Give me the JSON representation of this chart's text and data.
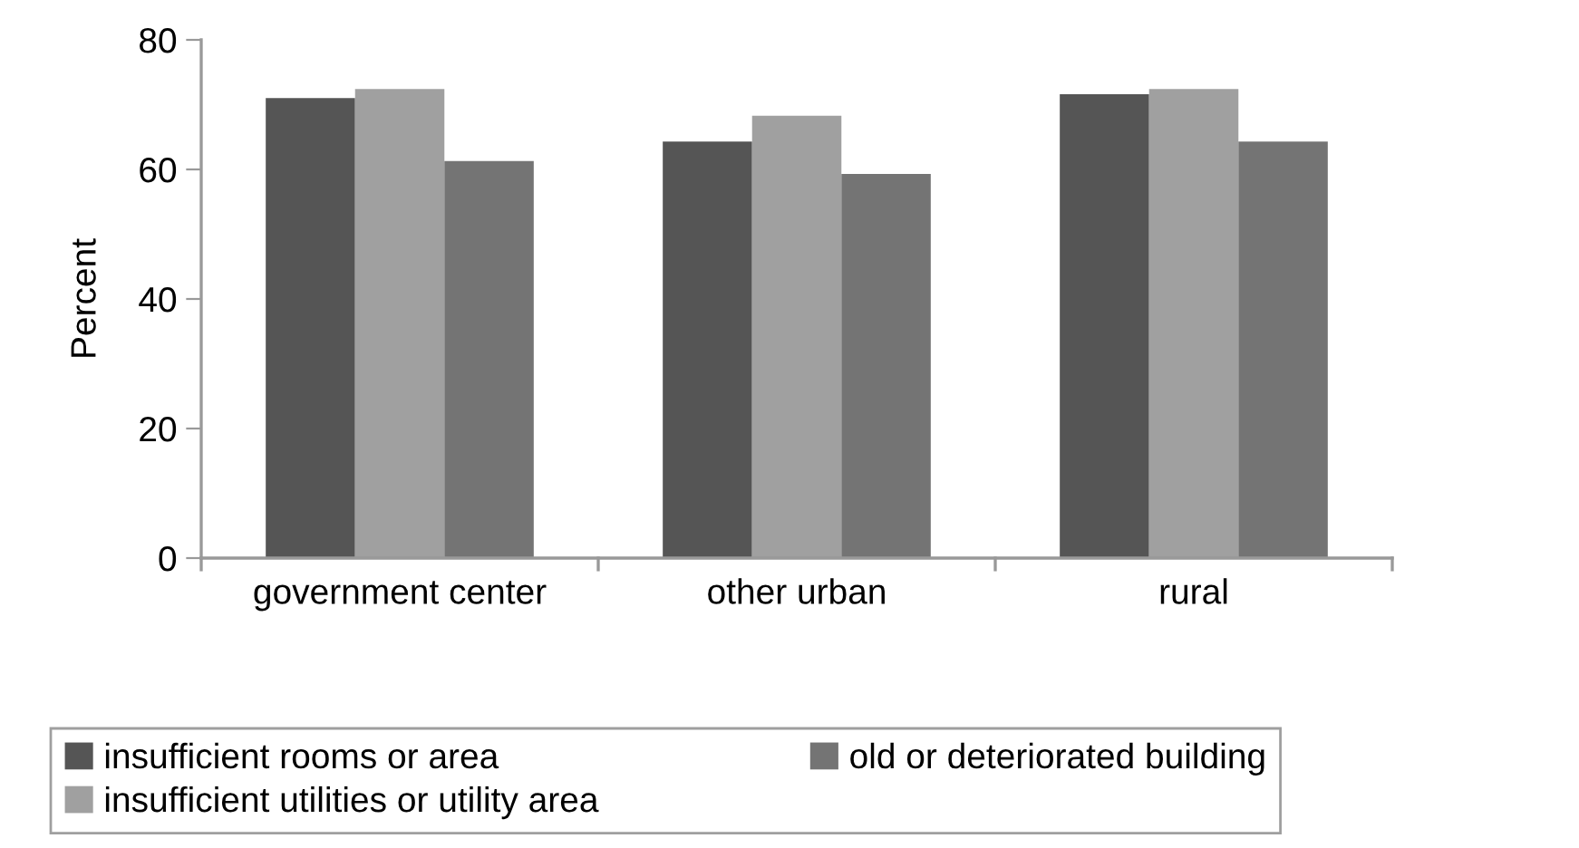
{
  "chart_data": {
    "type": "bar",
    "ylabel": "Percent",
    "categories": [
      "government center",
      "other urban",
      "rural"
    ],
    "series": [
      {
        "name": "insufficient rooms or area",
        "color": "#555555",
        "values": [
          71.0,
          64.3,
          71.6
        ]
      },
      {
        "name": "insufficient utilities or utility area",
        "color": "#a0a0a0",
        "values": [
          72.4,
          68.3,
          72.4
        ]
      },
      {
        "name": "old or deteriorated building",
        "color": "#747474",
        "values": [
          61.3,
          59.3,
          64.3
        ]
      }
    ],
    "ylim": [
      0,
      80
    ],
    "yticks": [
      0,
      20,
      40,
      60,
      80
    ],
    "grid": false,
    "legend": "bottom"
  }
}
